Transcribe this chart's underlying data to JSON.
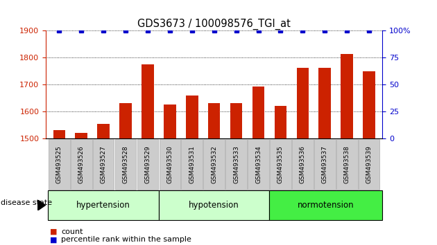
{
  "title": "GDS3673 / 100098576_TGI_at",
  "samples": [
    "GSM493525",
    "GSM493526",
    "GSM493527",
    "GSM493528",
    "GSM493529",
    "GSM493530",
    "GSM493531",
    "GSM493532",
    "GSM493533",
    "GSM493534",
    "GSM493535",
    "GSM493536",
    "GSM493537",
    "GSM493538",
    "GSM493539"
  ],
  "counts": [
    1532,
    1520,
    1555,
    1630,
    1775,
    1625,
    1660,
    1630,
    1630,
    1693,
    1622,
    1763,
    1763,
    1813,
    1750
  ],
  "percentiles": [
    100,
    100,
    100,
    100,
    100,
    100,
    100,
    100,
    100,
    100,
    100,
    100,
    100,
    100,
    100
  ],
  "bar_color": "#cc2200",
  "dot_color": "#0000cc",
  "ylim_left": [
    1500,
    1900
  ],
  "ylim_right": [
    0,
    100
  ],
  "yticks_left": [
    1500,
    1600,
    1700,
    1800,
    1900
  ],
  "yticks_right": [
    0,
    25,
    50,
    75,
    100
  ],
  "axis_color_left": "#cc2200",
  "axis_color_right": "#0000cc",
  "legend_count_label": "count",
  "legend_pct_label": "percentile rank within the sample",
  "disease_state_label": "disease state",
  "groups": [
    {
      "label": "hypertension",
      "start": 0,
      "end": 4,
      "color": "#ccffcc"
    },
    {
      "label": "hypotension",
      "start": 5,
      "end": 9,
      "color": "#ccffcc"
    },
    {
      "label": "normotension",
      "start": 10,
      "end": 14,
      "color": "#44ee44"
    }
  ],
  "tick_label_bg": "#cccccc",
  "tick_label_edge": "#aaaaaa"
}
